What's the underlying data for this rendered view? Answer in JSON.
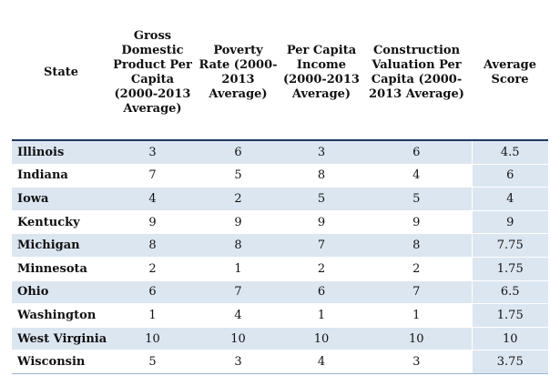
{
  "table": {
    "headers": {
      "state": "State",
      "gdp": "Gross Domestic Product Per Capita (2000-2013 Average)",
      "poverty": "Poverty Rate (2000-2013 Average)",
      "income": "Per Capita Income (2000-2013 Average)",
      "construction": "Construction Valuation Per Capita (2000-2013 Average)",
      "average": "Average Score"
    },
    "rows": [
      {
        "state": "Illinois",
        "gdp": "3",
        "poverty": "6",
        "income": "3",
        "construction": "6",
        "average": "4.5"
      },
      {
        "state": "Indiana",
        "gdp": "7",
        "poverty": "5",
        "income": "8",
        "construction": "4",
        "average": "6"
      },
      {
        "state": "Iowa",
        "gdp": "4",
        "poverty": "2",
        "income": "5",
        "construction": "5",
        "average": "4"
      },
      {
        "state": "Kentucky",
        "gdp": "9",
        "poverty": "9",
        "income": "9",
        "construction": "9",
        "average": "9"
      },
      {
        "state": "Michigan",
        "gdp": "8",
        "poverty": "8",
        "income": "7",
        "construction": "8",
        "average": "7.75"
      },
      {
        "state": "Minnesota",
        "gdp": "2",
        "poverty": "1",
        "income": "2",
        "construction": "2",
        "average": "1.75"
      },
      {
        "state": "Ohio",
        "gdp": "6",
        "poverty": "7",
        "income": "6",
        "construction": "7",
        "average": "6.5"
      },
      {
        "state": "Washington",
        "gdp": "1",
        "poverty": "4",
        "income": "1",
        "construction": "1",
        "average": "1.75"
      },
      {
        "state": "West Virginia",
        "gdp": "10",
        "poverty": "10",
        "income": "10",
        "construction": "10",
        "average": "10"
      },
      {
        "state": "Wisconsin",
        "gdp": "5",
        "poverty": "3",
        "income": "4",
        "construction": "3",
        "average": "3.75"
      }
    ]
  },
  "colors": {
    "row_shade": "#dce6f1",
    "header_rule": "#1f3864"
  }
}
